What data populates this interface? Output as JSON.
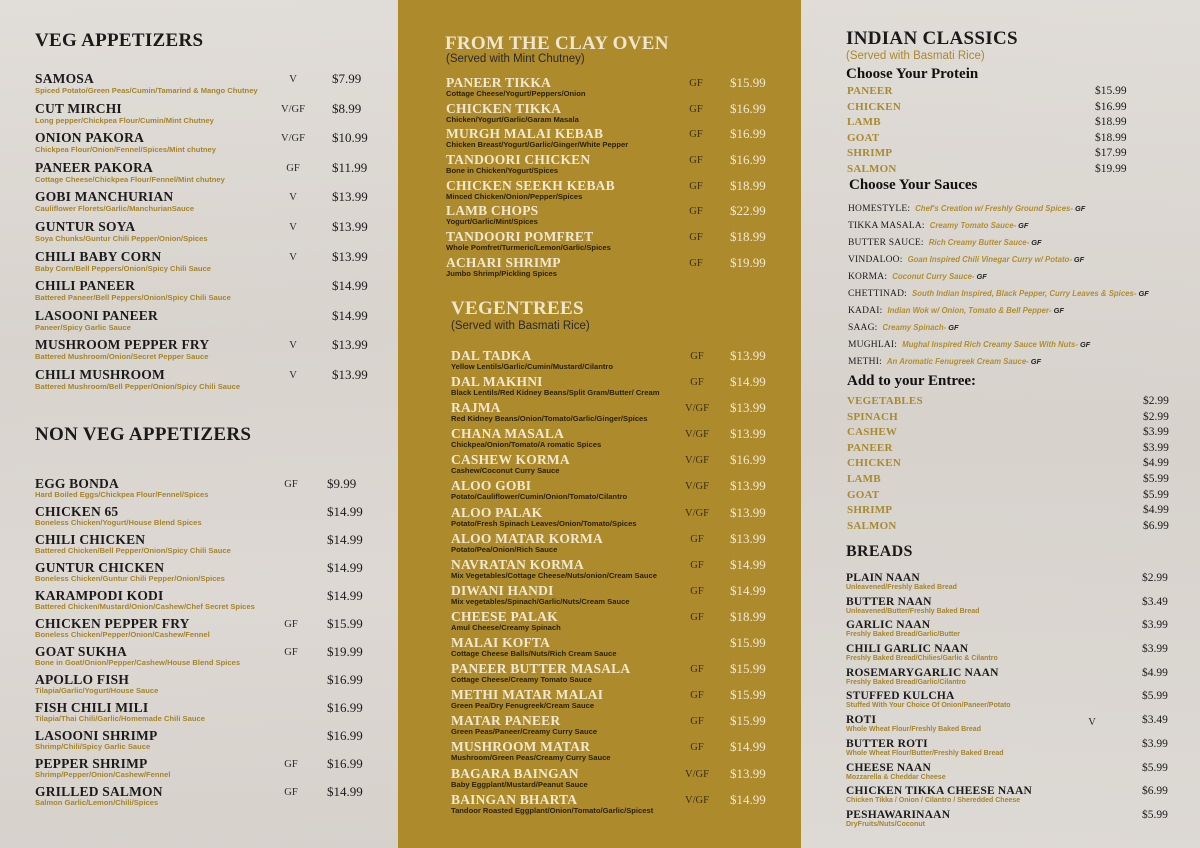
{
  "left": {
    "veg_appetizers": {
      "title": "VEG APPETIZERS",
      "items": [
        {
          "name": "SAMOSA",
          "desc": "Spiced Potato/Green Peas/Cumin/Tamarind & Mango Chutney",
          "tag": "V",
          "price": "$7.99"
        },
        {
          "name": "CUT MIRCHI",
          "desc": "Long pepper/Chickpea Flour/Cumin/Mint Chutney",
          "tag": "V/GF",
          "price": "$8.99"
        },
        {
          "name": "ONION PAKORA",
          "desc": "Chickpea Flour/Onion/Fennel/Spices/Mint chutney",
          "tag": "V/GF",
          "price": "$10.99"
        },
        {
          "name": "PANEER PAKORA",
          "desc": "Cottage Cheese/Chickpea Flour/Fennel/Mint chutney",
          "tag": "GF",
          "price": "$11.99"
        },
        {
          "name": "GOBI MANCHURIAN",
          "desc": "Cauliflower Florets/Garlic/ManchurianSauce",
          "tag": "V",
          "price": "$13.99"
        },
        {
          "name": "GUNTUR SOYA",
          "desc": "Soya Chunks/Guntur Chili Pepper/Onion/Spices",
          "tag": "V",
          "price": "$13.99"
        },
        {
          "name": "CHILI BABY CORN",
          "desc": "Baby Corn/Bell Peppers/Onion/Spicy Chili Sauce",
          "tag": "V",
          "price": "$13.99"
        },
        {
          "name": "CHILI PANEER",
          "desc": "Battered Paneer/Bell Peppers/Onion/Spicy Chili Sauce",
          "tag": "",
          "price": "$14.99"
        },
        {
          "name": "LASOONI PANEER",
          "desc": "Paneer/Spicy Garlic Sauce",
          "tag": "",
          "price": "$14.99"
        },
        {
          "name": "MUSHROOM PEPPER FRY",
          "desc": "Battered Mushroom/Onion/Secret Pepper Sauce",
          "tag": "V",
          "price": "$13.99"
        },
        {
          "name": "CHILI MUSHROOM",
          "desc": "Battered Mushroom/Bell Pepper/Onion/Spicy Chili Sauce",
          "tag": "V",
          "price": "$13.99"
        }
      ]
    },
    "non_veg_appetizers": {
      "title": "NON VEG APPETIZERS",
      "items": [
        {
          "name": "EGG BONDA",
          "desc": "Hard Boiled Eggs/Chickpea Flour/Fennel/Spices",
          "tag": "GF",
          "price": "$9.99"
        },
        {
          "name": "CHICKEN 65",
          "desc": "Boneless Chicken/Yogurt/House Blend Spices",
          "tag": "",
          "price": "$14.99"
        },
        {
          "name": "CHILI CHICKEN",
          "desc": "Battered Chicken/Bell Pepper/Onion/Spicy Chili Sauce",
          "tag": "",
          "price": "$14.99"
        },
        {
          "name": "GUNTUR  CHICKEN",
          "desc": "Boneless Chicken/Guntur Chili Pepper/Onion/Spices",
          "tag": "",
          "price": "$14.99"
        },
        {
          "name": "KARAMPODI KODI",
          "desc": "Battered Chicken/Mustard/Onion/Cashew/Chef Secret Spices",
          "tag": "",
          "price": "$14.99"
        },
        {
          "name": "CHICKEN PEPPER FRY",
          "desc": "Boneless Chicken/Pepper/Onion/Cashew/Fennel",
          "tag": "GF",
          "price": "$15.99"
        },
        {
          "name": "GOAT SUKHA",
          "desc": "Bone in Goat/Onion/Pepper/Cashew/House Blend Spices",
          "tag": "GF",
          "price": "$19.99"
        },
        {
          "name": "APOLLO FISH",
          "desc": "Tilapia/Garlic/Yogurt/House Sauce",
          "tag": "",
          "price": "$16.99"
        },
        {
          "name": "FISH CHILI MILI",
          "desc": "Tilapia/Thai Chili/Garlic/Homemade Chili Sauce",
          "tag": "",
          "price": "$16.99"
        },
        {
          "name": "LASOONI SHRIMP",
          "desc": "Shrimp/Chili/Spicy Garlic Sauce",
          "tag": "",
          "price": "$16.99"
        },
        {
          "name": "PEPPER SHRIMP",
          "desc": "Shrimp/Pepper/Onion/Cashew/Fennel",
          "tag": "GF",
          "price": "$16.99"
        },
        {
          "name": "GRILLED SALMON",
          "desc": "Salmon Garlic/Lemon/Chili/Spices",
          "tag": "GF",
          "price": "$14.99"
        }
      ]
    }
  },
  "middle": {
    "clay_oven": {
      "title": "FROM THE CLAY OVEN",
      "subtitle": "(Served with Mint Chutney)",
      "items": [
        {
          "name": "PANEER TIKKA",
          "desc": "Cottage Cheese/Yogurt/Peppers/Onion",
          "tag": "GF",
          "price": "$15.99"
        },
        {
          "name": "CHICKEN TIKKA",
          "desc": "Chicken/Yogurt/Garlic/Garam Masala",
          "tag": "GF",
          "price": "$16.99"
        },
        {
          "name": "MURGH MALAI KEBAB",
          "desc": "Chicken Breast/Yogurt/Garlic/Ginger/White Pepper",
          "tag": "GF",
          "price": "$16.99"
        },
        {
          "name": "TANDOORI CHICKEN",
          "desc": "Bone in Chicken/Yogurt/Spices",
          "tag": "GF",
          "price": "$16.99"
        },
        {
          "name": "CHICKEN SEEKH KEBAB",
          "desc": "Minced Chicken/Onion/Pepper/Spices",
          "tag": "GF",
          "price": "$18.99"
        },
        {
          "name": "LAMB CHOPS",
          "desc": "Yogurt/Garlic/Mint/Spices",
          "tag": "GF",
          "price": "$22.99"
        },
        {
          "name": "TANDOORI POMFRET",
          "desc": "Whole Pomfret/Turmeric/Lemon/Garlic/Spices",
          "tag": "GF",
          "price": "$18.99"
        },
        {
          "name": "ACHARI SHRIMP",
          "desc": "Jumbo Shrimp/Pickling Spices",
          "tag": "GF",
          "price": "$19.99"
        }
      ]
    },
    "vegentrees": {
      "title": "VEGENTREES",
      "subtitle": "(Served with Basmati Rice)",
      "items": [
        {
          "name": "DAL TADKA",
          "desc": "Yellow Lentils/Garlic/Cumin/Mustard/Cilantro",
          "tag": "GF",
          "price": "$13.99"
        },
        {
          "name": "DAL MAKHNI",
          "desc": "Black Lentils/Red Kidney Beans/Split Gram/Butter/ Cream",
          "tag": "GF",
          "price": "$14.99"
        },
        {
          "name": "RAJMA",
          "desc": "Red Kidney Beans/Onion/Tomato/Garlic/Ginger/Spices",
          "tag": "V/GF",
          "price": "$13.99"
        },
        {
          "name": "CHANA MASALA",
          "desc": "Chickpea/Onion/Tomato/A romatic Spices",
          "tag": "V/GF",
          "price": "$13.99"
        },
        {
          "name": "CASHEW KORMA",
          "desc": "Cashew/Coconut Curry Sauce",
          "tag": "V/GF",
          "price": "$16.99"
        },
        {
          "name": "ALOO GOBI",
          "desc": "Potato/Cauliflower/Cumin/Onion/Tomato/Cilantro",
          "tag": "V/GF",
          "price": "$13.99"
        },
        {
          "name": "ALOO PALAK",
          "desc": "Potato/Fresh Spinach Leaves/Onion/Tomato/Spices",
          "tag": "V/GF",
          "price": "$13.99"
        },
        {
          "name": "ALOO MATAR KORMA",
          "desc": "Potato/Pea/Onion/Rich Sauce",
          "tag": "GF",
          "price": "$13.99"
        },
        {
          "name": "NAVRATAN KORMA",
          "desc": "Mix Vegetables/Cottage Cheese/Nuts/onion/Cream Sauce",
          "tag": "GF",
          "price": "$14.99"
        },
        {
          "name": "DIWANI HANDI",
          "desc": "Mix vegetables/Spinach/Garlic/Nuts/Cream Sauce",
          "tag": "GF",
          "price": "$14.99"
        },
        {
          "name": "CHEESE PALAK",
          "desc": "Amul Cheese/Creamy Spinach",
          "tag": "GF",
          "price": "$18.99"
        },
        {
          "name": "MALAI KOFTA",
          "desc": "Cottage Cheese Balls/Nuts/Rich Cream Sauce",
          "tag": "",
          "price": "$15.99"
        },
        {
          "name": "PANEER BUTTER MASALA",
          "desc": "Cottage Cheese/Creamy Tomato Sauce",
          "tag": "GF",
          "price": "$15.99"
        },
        {
          "name": "METHI MATAR MALAI",
          "desc": "Green Pea/Dry Fenugreek/Cream Sauce",
          "tag": "GF",
          "price": "$15.99"
        },
        {
          "name": "MATAR PANEER",
          "desc": "Green Peas/Paneer/Creamy Curry Sauce",
          "tag": "GF",
          "price": "$15.99"
        },
        {
          "name": "MUSHROOM MATAR",
          "desc": "Mushroom/Green Peas/Creamy Curry Sauce",
          "tag": "GF",
          "price": "$14.99"
        },
        {
          "name": "BAGARA BAINGAN",
          "desc": "Baby Eggplant/Mustard/Peanut Sauce",
          "tag": "V/GF",
          "price": "$13.99"
        },
        {
          "name": "BAINGAN BHARTA",
          "desc": "Tandoor Roasted Eggplant/Onion/Tomato/Garlic/Spicest",
          "tag": "V/GF",
          "price": "$14.99"
        }
      ]
    }
  },
  "right": {
    "indian_classics": {
      "title": "INDIAN CLASSICS",
      "subtitle": "(Served with Basmati Rice)",
      "protein_heading": "Choose Your Protein",
      "proteins": [
        {
          "name": "PANEER",
          "price": "$15.99"
        },
        {
          "name": "CHICKEN",
          "price": "$16.99"
        },
        {
          "name": "LAMB",
          "price": "$18.99"
        },
        {
          "name": "GOAT",
          "price": "$18.99"
        },
        {
          "name": "SHRIMP",
          "price": "$17.99"
        },
        {
          "name": "SALMON",
          "price": "$19.99"
        }
      ],
      "sauces_heading": "Choose Your Sauces",
      "sauces": [
        {
          "name": "HOMESTYLE:",
          "desc": "Chef's Creation w/ Freshly Ground Spices-",
          "tag": "GF"
        },
        {
          "name": "TIKKA MASALA:",
          "desc": "Creamy Tomato Sauce-",
          "tag": "GF"
        },
        {
          "name": "BUTTER SAUCE:",
          "desc": "Rich Creamy Butter Sauce-",
          "tag": "GF"
        },
        {
          "name": "VINDALOO:",
          "desc": "Goan Inspired Chili Vinegar Curry w/ Potato-",
          "tag": "GF"
        },
        {
          "name": "KORMA:",
          "desc": "Coconut Curry Sauce-",
          "tag": "GF"
        },
        {
          "name": "CHETTINAD:",
          "desc": "South Indian Inspired, Black Pepper, Curry Leaves & Spices-",
          "tag": "GF"
        },
        {
          "name": "KADAI:",
          "desc": "Indian Wok w/ Onion, Tomato & Bell Pepper-",
          "tag": "GF"
        },
        {
          "name": "SAAG:",
          "desc": "Creamy Spinach-",
          "tag": "GF"
        },
        {
          "name": "MUGHLAI:",
          "desc": "Mughal Inspired Rich Creamy Sauce With Nuts-",
          "tag": "GF"
        },
        {
          "name": "METHI:",
          "desc": "An Aromatic Fenugreek Cream Sauce-",
          "tag": "GF"
        }
      ],
      "addons_heading": "Add to your Entree:",
      "addons": [
        {
          "name": "VEGETABLES",
          "price": "$2.99"
        },
        {
          "name": "SPINACH",
          "price": "$2.99"
        },
        {
          "name": "CASHEW",
          "price": "$3.99"
        },
        {
          "name": "PANEER",
          "price": "$3.99"
        },
        {
          "name": "CHICKEN",
          "price": "$4.99"
        },
        {
          "name": "LAMB",
          "price": "$5.99"
        },
        {
          "name": "GOAT",
          "price": "$5.99"
        },
        {
          "name": "SHRIMP",
          "price": "$4.99"
        },
        {
          "name": "SALMON",
          "price": "$6.99"
        }
      ]
    },
    "breads": {
      "title": "BREADS",
      "items": [
        {
          "name": "PLAIN NAAN",
          "desc": "Unleavened/Freshly Baked Bread",
          "tag": "",
          "price": "$2.99"
        },
        {
          "name": "BUTTER NAAN",
          "desc": "Unleavened/Butter/Freshly Baked Bread",
          "tag": "",
          "price": "$3.49"
        },
        {
          "name": "GARLIC NAAN",
          "desc": "Freshly Baked Bread/Garlic/Butter",
          "tag": "",
          "price": "$3.99"
        },
        {
          "name": "CHILI GARLIC NAAN",
          "desc": "Freshly Baked Bread/Chilies/Garlic & Cilantro",
          "tag": "",
          "price": "$3.99"
        },
        {
          "name": "ROSEMARYGARLIC NAAN",
          "desc": "Freshly Baked Bread/Garlic/Cilantro",
          "tag": "",
          "price": "$4.99"
        },
        {
          "name": "STUFFED KULCHA",
          "desc": "Stuffed With Your Choice Of Onion/Paneer/Potato",
          "tag": "",
          "price": "$5.99"
        },
        {
          "name": "ROTI",
          "desc": "Whole Wheat Flour/Freshly Baked Bread",
          "tag": "V",
          "price": "$3.49"
        },
        {
          "name": "BUTTER ROTI",
          "desc": "Whole Wheat Flour/Butter/Freshly Baked Bread",
          "tag": "",
          "price": "$3.99"
        },
        {
          "name": "CHEESE NAAN",
          "desc": "Mozzarella & Cheddar Cheese",
          "tag": "",
          "price": "$5.99"
        },
        {
          "name": "CHICKEN TIKKA CHEESE NAAN",
          "desc": "Chicken Tikka / Onion / Cilantro / Sheredded Cheese",
          "tag": "",
          "price": "$6.99"
        },
        {
          "name": "PESHAWARINAAN",
          "desc": "DryFruits/Nuts/Coconut",
          "tag": "",
          "price": "$5.99"
        }
      ]
    }
  },
  "colors": {
    "gold_panel": "#ad8a2c",
    "gold_text": "#a98a2e",
    "cream_text": "#f1e8d2",
    "dark_text": "#1b1b1b"
  }
}
